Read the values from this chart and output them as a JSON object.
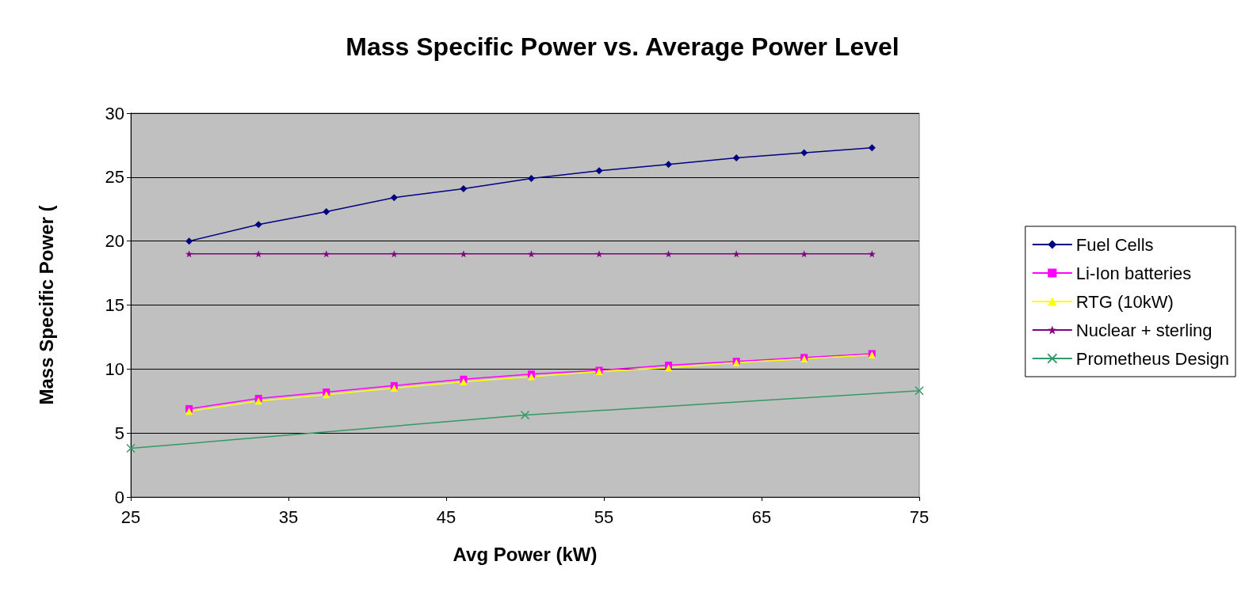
{
  "chart_data": {
    "type": "line",
    "title": "Mass Specific Power vs. Average Power Level",
    "xlabel": "Avg Power (kW)",
    "ylabel": "Mass Specific Power (",
    "xlim": [
      25,
      75
    ],
    "xticks": [
      25,
      35,
      45,
      55,
      65,
      75
    ],
    "ylim": [
      0,
      30
    ],
    "yticks": [
      0,
      5,
      10,
      15,
      20,
      25,
      30
    ],
    "grid": "y",
    "legend": "right",
    "series": [
      {
        "name": "Fuel Cells",
        "color": "#000080",
        "marker": "diamond",
        "x": [
          28.7,
          33.1,
          37.4,
          41.7,
          46.1,
          50.4,
          54.7,
          59.1,
          63.4,
          67.7,
          72.0
        ],
        "values": [
          20.0,
          21.3,
          22.3,
          23.4,
          24.1,
          24.9,
          25.5,
          26.0,
          26.5,
          26.9,
          27.3
        ]
      },
      {
        "name": "Li-Ion batteries",
        "color": "#ff00ff",
        "marker": "square",
        "x": [
          28.7,
          33.1,
          37.4,
          41.7,
          46.1,
          50.4,
          54.7,
          59.1,
          63.4,
          67.7,
          72.0
        ],
        "values": [
          6.9,
          7.7,
          8.2,
          8.7,
          9.2,
          9.6,
          9.9,
          10.3,
          10.6,
          10.9,
          11.2
        ]
      },
      {
        "name": "RTG (10kW)",
        "color": "#ffff00",
        "marker": "triangle",
        "x": [
          28.7,
          33.1,
          37.4,
          41.7,
          46.1,
          50.4,
          54.7,
          59.1,
          63.4,
          67.7,
          72.0
        ],
        "values": [
          6.7,
          7.5,
          8.0,
          8.5,
          9.0,
          9.4,
          9.8,
          10.1,
          10.5,
          10.8,
          11.1
        ]
      },
      {
        "name": "Nuclear + sterling",
        "color": "#800080",
        "marker": "star",
        "x": [
          28.7,
          33.1,
          37.4,
          41.7,
          46.1,
          50.4,
          54.7,
          59.1,
          63.4,
          67.7,
          72.0
        ],
        "values": [
          19.0,
          19.0,
          19.0,
          19.0,
          19.0,
          19.0,
          19.0,
          19.0,
          19.0,
          19.0,
          19.0
        ]
      },
      {
        "name": "Prometheus Design",
        "color": "#339966",
        "marker": "cross",
        "x": [
          25,
          50,
          75
        ],
        "values": [
          3.8,
          6.4,
          8.3
        ]
      }
    ]
  }
}
